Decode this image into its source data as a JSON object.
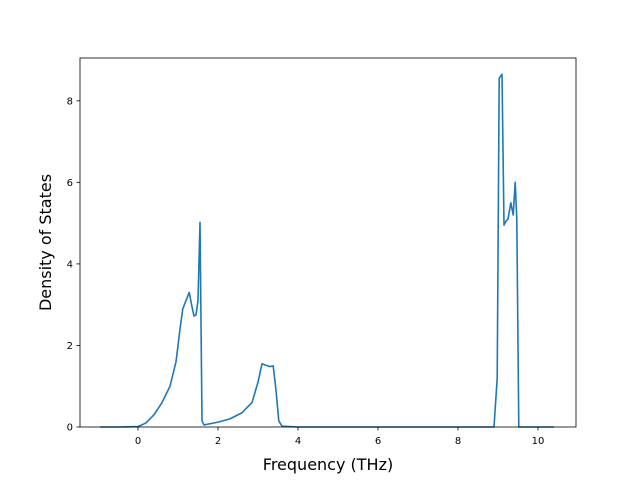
{
  "chart_data": {
    "type": "line",
    "title": "",
    "xlabel": "Frequency (THz)",
    "ylabel": "Density of States",
    "xlim": [
      -1.45,
      10.95
    ],
    "ylim": [
      0,
      9.05
    ],
    "xticks": [
      0,
      2,
      4,
      6,
      8,
      10
    ],
    "yticks": [
      0,
      2,
      4,
      6,
      8
    ],
    "grid": false,
    "legend": "none",
    "series": [
      {
        "color": "#1f77b4",
        "x": [
          -0.95,
          -0.5,
          0.0,
          0.2,
          0.4,
          0.6,
          0.8,
          0.95,
          1.05,
          1.12,
          1.2,
          1.28,
          1.35,
          1.4,
          1.45,
          1.5,
          1.55,
          1.6,
          1.65,
          1.8,
          2.0,
          2.3,
          2.6,
          2.85,
          3.0,
          3.1,
          3.18,
          3.25,
          3.3,
          3.38,
          3.45,
          3.52,
          3.6,
          4.0,
          6.0,
          8.0,
          8.9,
          8.98,
          9.03,
          9.06,
          9.1,
          9.15,
          9.2,
          9.25,
          9.32,
          9.38,
          9.43,
          9.47,
          9.52,
          10.4
        ],
        "y": [
          0.0,
          0.0,
          0.01,
          0.1,
          0.3,
          0.6,
          1.0,
          1.6,
          2.4,
          2.9,
          3.1,
          3.3,
          2.95,
          2.72,
          2.75,
          3.1,
          5.02,
          0.15,
          0.05,
          0.08,
          0.12,
          0.2,
          0.35,
          0.6,
          1.1,
          1.55,
          1.52,
          1.5,
          1.48,
          1.5,
          0.9,
          0.15,
          0.02,
          0.0,
          0.0,
          0.0,
          0.0,
          1.2,
          8.55,
          8.6,
          8.65,
          4.95,
          5.05,
          5.1,
          5.5,
          5.2,
          6.0,
          5.1,
          0.0,
          0.0
        ]
      }
    ]
  }
}
